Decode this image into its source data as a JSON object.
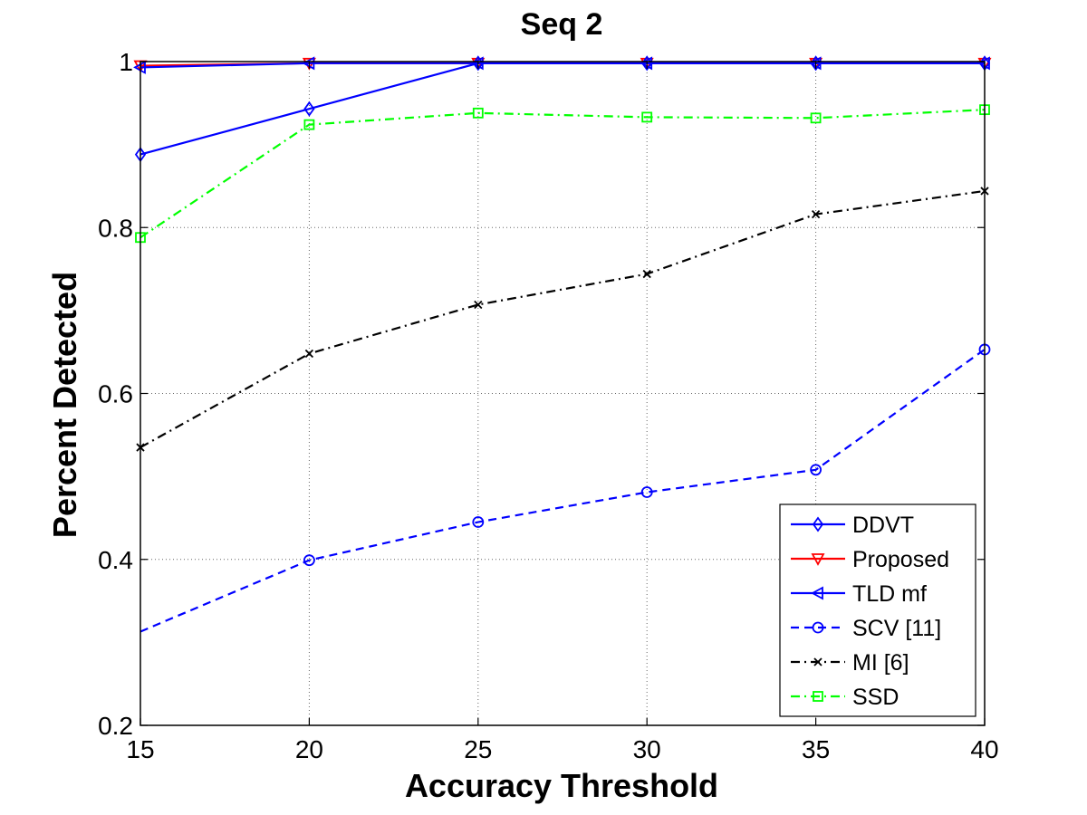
{
  "chart_data": {
    "type": "line",
    "title": "Seq 2",
    "xlabel": "Accuracy Threshold",
    "ylabel": "Percent Detected",
    "x": [
      15,
      20,
      25,
      30,
      35,
      40
    ],
    "xlim": [
      15,
      40
    ],
    "ylim": [
      0.2,
      1.0
    ],
    "xticks": [
      "15",
      "20",
      "25",
      "30",
      "35",
      "40"
    ],
    "yticks": [
      "0.2",
      "0.4",
      "0.6",
      "0.8",
      "1"
    ],
    "grid": true,
    "legend_position": "bottom-right",
    "series": [
      {
        "name": "DDVT",
        "values": [
          0.888,
          0.943,
          0.998,
          0.998,
          0.998,
          0.998
        ],
        "color": "#0000ff",
        "marker": "diamond",
        "dash": "solid"
      },
      {
        "name": "Proposed",
        "values": [
          0.995,
          0.998,
          0.998,
          0.998,
          0.998,
          0.998
        ],
        "color": "#ff0000",
        "marker": "triangle-down",
        "dash": "solid"
      },
      {
        "name": "TLD mf",
        "values": [
          0.993,
          0.998,
          0.998,
          0.998,
          0.998,
          0.998
        ],
        "color": "#0000ff",
        "marker": "triangle-left",
        "dash": "solid"
      },
      {
        "name": "SCV [11]",
        "values": [
          0.313,
          0.399,
          0.445,
          0.481,
          0.508,
          0.653
        ],
        "color": "#0000ff",
        "marker": "circle",
        "dash": "dashed"
      },
      {
        "name": "MI [6]",
        "values": [
          0.535,
          0.648,
          0.707,
          0.744,
          0.816,
          0.844
        ],
        "color": "#000000",
        "marker": "x",
        "dash": "dashdot"
      },
      {
        "name": "SSD",
        "values": [
          0.788,
          0.924,
          0.938,
          0.933,
          0.932,
          0.942
        ],
        "color": "#00ff00",
        "marker": "square",
        "dash": "dashdot"
      }
    ]
  }
}
